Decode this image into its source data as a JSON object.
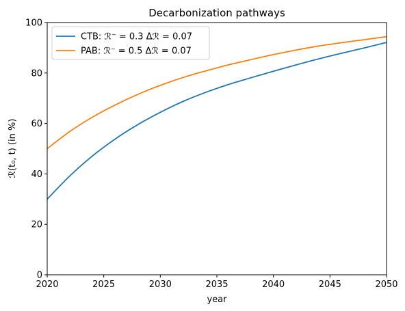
{
  "chart_data": {
    "type": "line",
    "title": "Decarbonization pathways",
    "xlabel": "year",
    "ylabel": "ℛ(t₀, t) (in %)",
    "xlim": [
      2020,
      2050
    ],
    "ylim": [
      0,
      100
    ],
    "xticks": [
      "2020",
      "2025",
      "2030",
      "2035",
      "2040",
      "2045",
      "2050"
    ],
    "yticks": [
      "0",
      "20",
      "40",
      "60",
      "80",
      "100"
    ],
    "grid": false,
    "legend_position": "top-left",
    "x": [
      2020,
      2022,
      2024,
      2026,
      2028,
      2030,
      2032,
      2034,
      2036,
      2038,
      2040,
      2042,
      2044,
      2046,
      2048,
      2050
    ],
    "series": [
      {
        "name": "CTB: ℛ⁻ = 0.3   Δℛ = 0.07",
        "color": "#1f77b4",
        "values": [
          30.0,
          39.2,
          47.1,
          53.8,
          59.5,
          64.4,
          68.7,
          72.3,
          75.4,
          78.1,
          80.7,
          83.2,
          85.6,
          87.8,
          89.9,
          92.1
        ]
      },
      {
        "name": "PAB: ℛ⁻ = 0.5   Δℛ = 0.07",
        "color": "#ff7f0e",
        "values": [
          50.0,
          56.8,
          62.5,
          67.3,
          71.5,
          75.1,
          78.2,
          80.8,
          83.2,
          85.3,
          87.3,
          89.1,
          90.7,
          92.0,
          93.2,
          94.4
        ]
      }
    ]
  }
}
